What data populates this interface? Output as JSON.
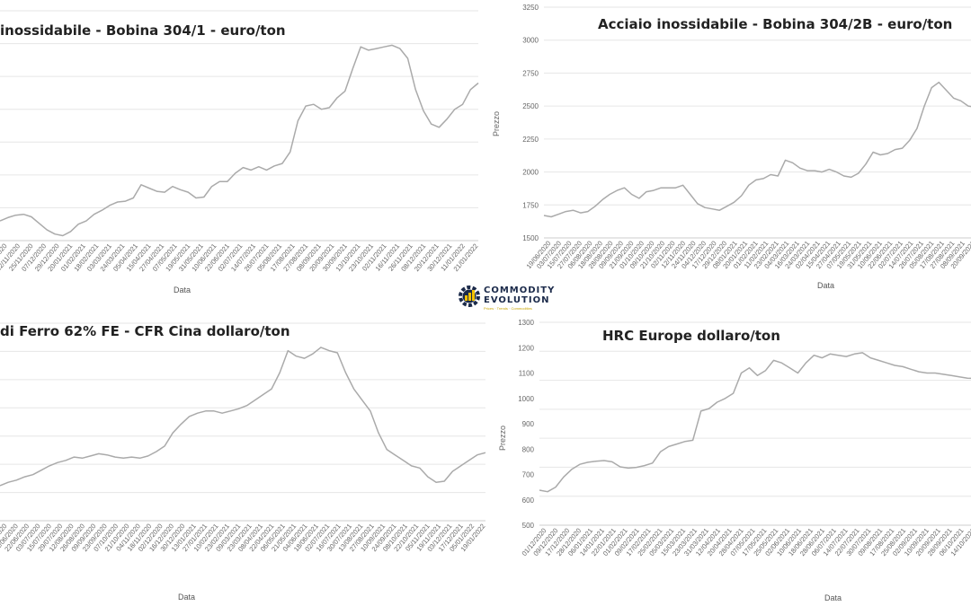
{
  "logo": {
    "line1": "COMMODITY",
    "line2": "EVOLUTION",
    "tagline": "Prices · Trends · Commodities"
  },
  "chart_data": [
    {
      "type": "line",
      "title": "inossidabile - Bobina 304/1 - euro/ton",
      "xlabel": "Data",
      "ylabel": "",
      "grid": true,
      "color": "#aaaaaa",
      "ylim": [
        1600,
        3000
      ],
      "tick_values": [],
      "x_ticks": [
        "13/11/2020",
        "12/11/2020",
        "25/11/2020",
        "07/12/2020",
        "29/12/2020",
        "20/01/2021",
        "01/02/2021",
        "18/02/2021",
        "03/03/2021",
        "24/03/2021",
        "05/04/2021",
        "15/04/2021",
        "27/04/2021",
        "07/05/2021",
        "19/05/2021",
        "31/05/2021",
        "10/06/2021",
        "22/06/2021",
        "02/07/2021",
        "14/07/2021",
        "26/07/2021",
        "05/08/2021",
        "17/08/2021",
        "27/08/2021",
        "08/09/2021",
        "20/09/2021",
        "30/09/2021",
        "13/10/2021",
        "23/10/2021",
        "02/11/2021",
        "16/11/2021",
        "26/11/2021",
        "08/12/2021",
        "20/12/2021",
        "30/12/2021",
        "11/01/2022",
        "21/01/2022"
      ],
      "values": [
        1720,
        1740,
        1755,
        1760,
        1745,
        1705,
        1665,
        1640,
        1630,
        1655,
        1700,
        1720,
        1760,
        1785,
        1815,
        1835,
        1840,
        1860,
        1940,
        1920,
        1900,
        1895,
        1930,
        1910,
        1895,
        1860,
        1865,
        1930,
        1960,
        1960,
        2010,
        2045,
        2030,
        2050,
        2030,
        2055,
        2070,
        2140,
        2330,
        2420,
        2430,
        2400,
        2410,
        2470,
        2510,
        2650,
        2780,
        2760,
        2770,
        2780,
        2790,
        2770,
        2710,
        2520,
        2390,
        2310,
        2290,
        2340,
        2400,
        2430,
        2520,
        2560
      ]
    },
    {
      "type": "line",
      "title": "Acciaio inossidabile - Bobina 304/2B - euro/ton",
      "xlabel": "Data",
      "ylabel": "Prezzo",
      "grid": true,
      "color": "#aaaaaa",
      "ylim": [
        1500,
        3250
      ],
      "tick_values": [
        1500,
        1750,
        2000,
        2250,
        2500,
        2750,
        3000,
        3250
      ],
      "x_ticks": [
        "19/06/2020",
        "03/07/2020",
        "15/07/2020",
        "27/07/2020",
        "06/08/2020",
        "18/08/2020",
        "28/08/2020",
        "09/09/2020",
        "21/09/2020",
        "01/10/2020",
        "09/10/2020",
        "21/10/2020",
        "02/11/2020",
        "12/11/2020",
        "24/11/2020",
        "04/12/2020",
        "17/12/2020",
        "29/12/2020",
        "08/01/2021",
        "20/01/2021",
        "01/02/2021",
        "11/02/2021",
        "23/02/2021",
        "04/03/2021",
        "16/03/2021",
        "24/03/2021",
        "02/04/2021",
        "15/04/2021",
        "27/04/2021",
        "07/05/2021",
        "19/05/2021",
        "31/05/2021",
        "10/06/2021",
        "22/06/2021",
        "02/07/2021",
        "14/07/2021",
        "26/07/2021",
        "05/08/2021",
        "17/08/2021",
        "27/08/2021",
        "08/09/2021",
        "20/09/2021"
      ],
      "values": [
        1670,
        1660,
        1680,
        1700,
        1710,
        1690,
        1700,
        1740,
        1790,
        1830,
        1860,
        1880,
        1830,
        1800,
        1850,
        1860,
        1880,
        1880,
        1880,
        1900,
        1830,
        1760,
        1730,
        1720,
        1710,
        1740,
        1770,
        1820,
        1900,
        1940,
        1950,
        1980,
        1970,
        2090,
        2070,
        2030,
        2010,
        2010,
        2000,
        2020,
        2000,
        1970,
        1960,
        1990,
        2060,
        2150,
        2130,
        2140,
        2170,
        2180,
        2240,
        2330,
        2500,
        2640,
        2680,
        2620,
        2560,
        2540,
        2500,
        2490
      ]
    },
    {
      "type": "line",
      "title": "di Ferro 62% FE - CFR Cina dollaro/ton",
      "xlabel": "Data",
      "ylabel": "",
      "grid": true,
      "color": "#aaaaaa",
      "ylim": [
        60,
        240
      ],
      "tick_values": [],
      "x_ticks": [
        "23/05/2020",
        "11/06/2020",
        "22/06/2020",
        "03/07/2020",
        "15/07/2020",
        "29/07/2020",
        "12/08/2020",
        "26/08/2020",
        "09/09/2020",
        "23/09/2020",
        "07/10/2020",
        "21/10/2020",
        "04/11/2020",
        "18/11/2020",
        "02/12/2020",
        "16/12/2020",
        "30/12/2020",
        "13/01/2021",
        "27/01/2021",
        "10/02/2021",
        "23/02/2021",
        "09/03/2021",
        "23/03/2021",
        "08/04/2021",
        "22/04/2021",
        "06/05/2021",
        "21/05/2021",
        "04/06/2021",
        "18/06/2021",
        "02/07/2021",
        "16/07/2021",
        "30/07/2021",
        "13/08/2021",
        "27/08/2021",
        "10/09/2021",
        "24/09/2021",
        "08/10/2021",
        "22/10/2021",
        "05/11/2021",
        "19/11/2021",
        "03/12/2021",
        "17/12/2021",
        "05/01/2022",
        "19/01/2022"
      ],
      "values": [
        92,
        95,
        97,
        100,
        102,
        106,
        110,
        113,
        115,
        118,
        117,
        119,
        121,
        120,
        118,
        117,
        118,
        117,
        119,
        123,
        128,
        140,
        148,
        155,
        158,
        160,
        160,
        158,
        160,
        162,
        165,
        170,
        175,
        180,
        195,
        215,
        210,
        208,
        212,
        218,
        215,
        213,
        195,
        180,
        170,
        160,
        140,
        125,
        120,
        115,
        110,
        108,
        100,
        95,
        96,
        105,
        110,
        115,
        120,
        122
      ]
    },
    {
      "type": "line",
      "title": "HRC Europe dollaro/ton",
      "xlabel": "Data",
      "ylabel": "Prezzo",
      "grid": true,
      "color": "#aaaaaa",
      "ylim": [
        500,
        1300
      ],
      "tick_values": [
        500,
        600,
        700,
        800,
        900,
        1000,
        1100,
        1200,
        1300
      ],
      "x_ticks": [
        "01/12/2020",
        "09/12/2020",
        "17/12/2020",
        "28/12/2020",
        "06/01/2021",
        "14/01/2021",
        "22/01/2021",
        "01/02/2021",
        "09/02/2021",
        "17/02/2021",
        "25/02/2021",
        "05/03/2021",
        "15/03/2021",
        "23/03/2021",
        "31/03/2021",
        "12/04/2021",
        "20/04/2021",
        "28/04/2021",
        "07/05/2021",
        "17/05/2021",
        "25/05/2021",
        "02/06/2021",
        "10/06/2021",
        "18/06/2021",
        "28/06/2021",
        "06/07/2021",
        "14/07/2021",
        "22/07/2021",
        "30/07/2021",
        "09/08/2021",
        "17/08/2021",
        "25/08/2021",
        "02/09/2021",
        "10/09/2021",
        "20/09/2021",
        "28/09/2021",
        "06/10/2021",
        "14/10/2021"
      ],
      "values": [
        638,
        632,
        650,
        690,
        720,
        740,
        748,
        752,
        755,
        750,
        730,
        725,
        728,
        735,
        745,
        790,
        810,
        820,
        830,
        835,
        950,
        960,
        985,
        1000,
        1020,
        1100,
        1120,
        1090,
        1110,
        1150,
        1140,
        1120,
        1100,
        1140,
        1170,
        1160,
        1175,
        1170,
        1165,
        1175,
        1180,
        1160,
        1150,
        1140,
        1130,
        1125,
        1115,
        1105,
        1100,
        1100,
        1095,
        1090,
        1085,
        1080,
        1078
      ]
    }
  ]
}
